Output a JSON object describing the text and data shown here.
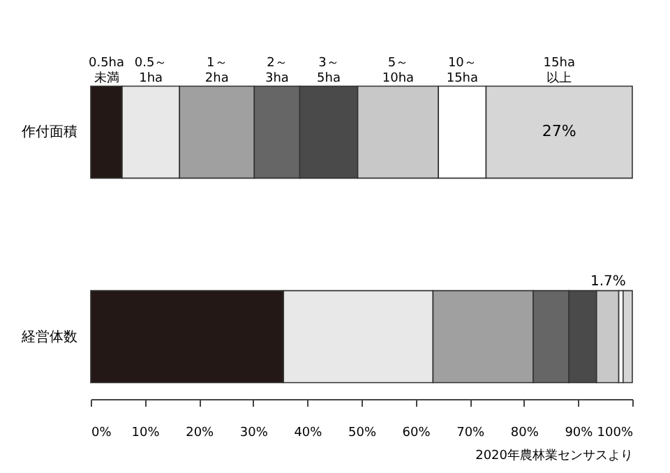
{
  "chart_data": {
    "type": "bar",
    "orientation": "horizontal",
    "stacked": true,
    "categories": [
      "作付面積",
      "経営体数"
    ],
    "series": [
      {
        "name": "0.5ha 未満",
        "color": "#231815",
        "values": [
          5.8,
          35.6
        ]
      },
      {
        "name": "0.5～ 1ha",
        "color": "#e8e8e8",
        "values": [
          10.6,
          27.6
        ]
      },
      {
        "name": "1～ 2ha",
        "color": "#a0a0a0",
        "values": [
          13.8,
          18.5
        ]
      },
      {
        "name": "2～ 3ha",
        "color": "#666666",
        "values": [
          8.4,
          6.6
        ]
      },
      {
        "name": "3～ 5ha",
        "color": "#4a4a4a",
        "values": [
          10.7,
          5.1
        ]
      },
      {
        "name": "5～ 10ha",
        "color": "#c8c8c8",
        "values": [
          14.9,
          4.1
        ]
      },
      {
        "name": "10～ 15ha",
        "color": "#ffffff",
        "values": [
          8.8,
          0.8
        ]
      },
      {
        "name": "15ha 以上",
        "color": "#d6d6d6",
        "values": [
          27,
          1.7
        ],
        "value_labels": [
          "27%",
          "1.7%"
        ]
      }
    ],
    "xlim": [
      0,
      100
    ],
    "xticks": [
      {
        "value": 0,
        "label": "0%"
      },
      {
        "value": 10,
        "label": "10%"
      },
      {
        "value": 20,
        "label": "20%"
      },
      {
        "value": 30,
        "label": "30%"
      },
      {
        "value": 40,
        "label": "40%"
      },
      {
        "value": 50,
        "label": "50%"
      },
      {
        "value": 60,
        "label": "60%"
      },
      {
        "value": 70,
        "label": "70%"
      },
      {
        "value": 80,
        "label": "80%"
      },
      {
        "value": 90,
        "label": "90%"
      },
      {
        "value": 100,
        "label": "100%"
      }
    ],
    "grid": false,
    "legend": false,
    "annotations": [
      "2020年農林業センサスより"
    ]
  }
}
